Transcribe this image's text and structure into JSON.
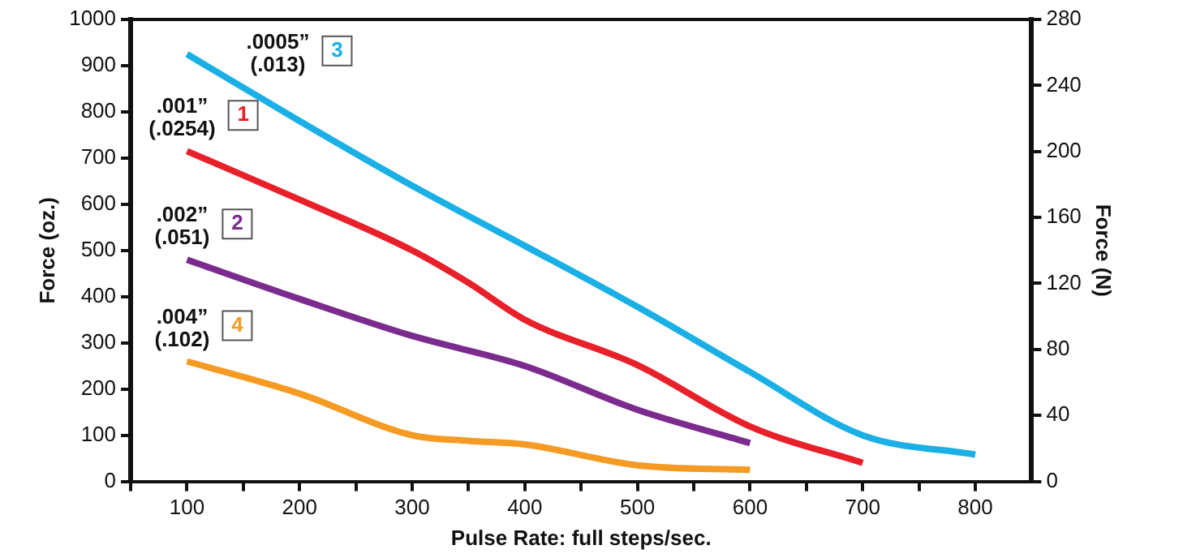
{
  "chart_data": {
    "type": "line",
    "xlabel": "Pulse Rate: full steps/sec.",
    "ylabel": "Force (oz.)",
    "y2label": "Force (N)",
    "xlim": [
      50,
      850
    ],
    "xticks": [
      {
        "value": 50,
        "label": null
      },
      100,
      {
        "value": 150,
        "label": null
      },
      200,
      {
        "value": 250,
        "label": null
      },
      300,
      {
        "value": 350,
        "label": null
      },
      400,
      {
        "value": 450,
        "label": null
      },
      500,
      {
        "value": 550,
        "label": null
      },
      600,
      {
        "value": 650,
        "label": null
      },
      700,
      {
        "value": 750,
        "label": null
      },
      800
    ],
    "ylim": [
      0,
      1000
    ],
    "yticks": [
      0,
      100,
      200,
      300,
      400,
      500,
      600,
      700,
      800,
      900,
      1000
    ],
    "y2lim": [
      0,
      280
    ],
    "y2ticks": [
      0,
      40,
      80,
      120,
      160,
      200,
      240,
      280
    ],
    "grid": false,
    "legend": false,
    "marker": "none",
    "line_style": "solid",
    "series": [
      {
        "name": "1",
        "color": "#e8202a",
        "x": [
          100,
          200,
          300,
          350,
          400,
          500,
          600,
          700
        ],
        "values": [
          715,
          610,
          500,
          430,
          350,
          252,
          119,
          40
        ]
      },
      {
        "name": "2",
        "color": "#7b2a8e",
        "x": [
          100,
          200,
          300,
          400,
          500,
          600
        ],
        "values": [
          480,
          395,
          315,
          250,
          155,
          83
        ]
      },
      {
        "name": "3",
        "color": "#1ab0e6",
        "x": [
          100,
          200,
          300,
          400,
          500,
          600,
          700,
          800
        ],
        "values": [
          925,
          780,
          640,
          510,
          378,
          237,
          100,
          58
        ]
      },
      {
        "name": "4",
        "color": "#f59a23",
        "x": [
          100,
          200,
          300,
          350,
          400,
          500,
          600
        ],
        "values": [
          260,
          190,
          100,
          88,
          80,
          35,
          25
        ]
      }
    ],
    "annotations": [
      ".001”\n(.0254)",
      ".002”\n(.051)",
      ".0005”\n(.013)",
      ".004”\n(.102)"
    ]
  }
}
